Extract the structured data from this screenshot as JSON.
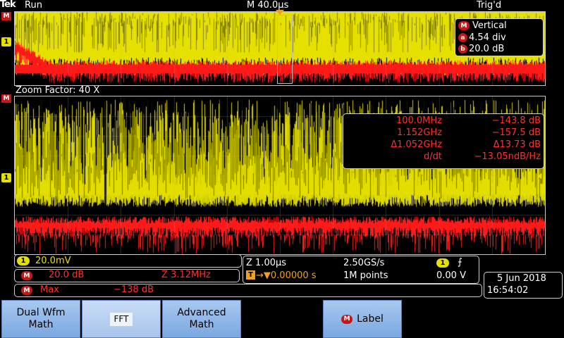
{
  "header": {
    "logo": "Tek",
    "run_state": "Run",
    "timebase": "M 40.0µs",
    "trigger_state": "Trig'd"
  },
  "markers": {
    "math": "M",
    "ch1": "1"
  },
  "vertical_box": {
    "title": "Vertical",
    "a_label": "a",
    "a_value": "4.54 div",
    "b_label": "b",
    "b_value": "20.0 dB"
  },
  "zoom": {
    "label": "Zoom Factor: 40 X"
  },
  "cursor_readout": {
    "rows": [
      {
        "left": "100.0MHz",
        "right": "−143.8 dB"
      },
      {
        "left": "1.152GHz",
        "right": "−157.5 dB"
      },
      {
        "left": "Δ1.052GHz",
        "right": "Δ13.73 dB"
      },
      {
        "left": "d/dt",
        "right": "−13.05ndB/Hz"
      }
    ]
  },
  "channel_info": {
    "ch1_scale": "20.0mV",
    "math_scale": "20.0 dB",
    "math_zoom": "Z 3.12MHz",
    "max_label": "Max",
    "max_value": "−138 dB"
  },
  "timing": {
    "zoom_time": "Z 1.00µs",
    "sample_rate": "2.50GS/s",
    "trigger_position": "→▼0.00000 s",
    "record_length": "1M points",
    "trigger_level": "0.00 V"
  },
  "datetime": {
    "date": "5 Jun 2018",
    "time": "16:54:02"
  },
  "softkeys": [
    {
      "label": "Dual Wfm Math"
    },
    {
      "label": "FFT"
    },
    {
      "label": "Advanced Math"
    },
    {
      "label": "Label"
    }
  ],
  "colors": {
    "ch1": "#e6e000",
    "math": "#ff1a1a",
    "softkey": "#8fb8ea"
  }
}
